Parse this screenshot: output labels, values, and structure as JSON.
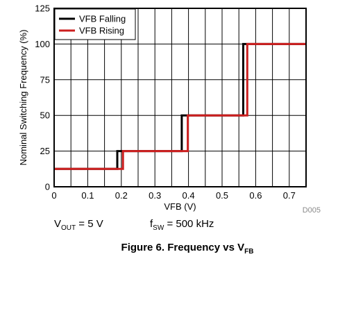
{
  "chart_data": {
    "type": "line",
    "xlabel": "VFB (V)",
    "ylabel": "Nominal Switching Frequency (%)",
    "xlim": [
      0,
      0.75
    ],
    "ylim": [
      0,
      125
    ],
    "xticks": [
      0,
      0.1,
      0.2,
      0.3,
      0.4,
      0.5,
      0.6,
      0.7
    ],
    "xtick_labels": [
      "0",
      "0.1",
      "0.2",
      "0.3",
      "0.4",
      "0.5",
      "0.6",
      "0.7"
    ],
    "yticks": [
      0,
      25,
      50,
      75,
      100,
      125
    ],
    "ytick_labels": [
      "0",
      "25",
      "50",
      "75",
      "100",
      "125"
    ],
    "x_minor_step": 0.05,
    "grid": true,
    "legend": "top-left",
    "series": [
      {
        "name": "VFB Falling",
        "color": "#000000",
        "x": [
          0,
          0.188,
          0.188,
          0.38,
          0.38,
          0.563,
          0.563,
          0.75
        ],
        "y": [
          12.5,
          12.5,
          25,
          25,
          50,
          50,
          100,
          100
        ]
      },
      {
        "name": "VFB Rising",
        "color": "#cc1f1f",
        "x": [
          0,
          0.205,
          0.205,
          0.398,
          0.398,
          0.575,
          0.575,
          0.75
        ],
        "y": [
          12.5,
          12.5,
          25,
          25,
          50,
          50,
          100,
          100
        ]
      }
    ],
    "doc_id": "D005"
  },
  "conditions": {
    "vout": {
      "symbol": "V",
      "sub": "OUT",
      "value": " = 5 V"
    },
    "fsw": {
      "symbol": "f",
      "sub": "SW",
      "value": " = 500 kHz"
    }
  },
  "caption": {
    "text": "Figure 6. Frequency vs V",
    "sub": "FB"
  }
}
